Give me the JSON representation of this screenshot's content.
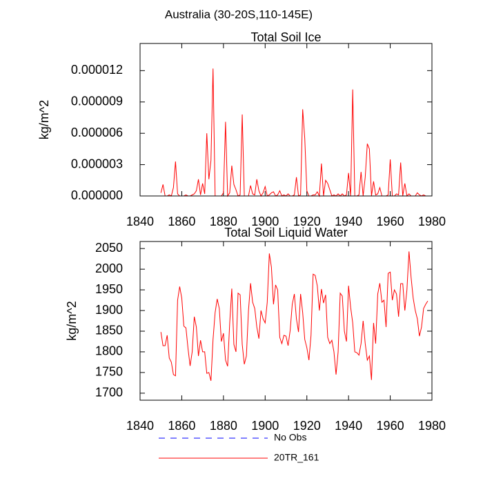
{
  "title": "Australia (30-20S,110-145E)",
  "legend": [
    {
      "name": "No Obs",
      "color": "#0000ff",
      "dash": true
    },
    {
      "name": "20TR_161",
      "color": "#ff0000",
      "dash": false
    }
  ],
  "chart_data": [
    {
      "type": "line",
      "title": "Total Soil Ice",
      "ylabel": "kg/m^2",
      "color": "#ff0000",
      "xlim": [
        1840,
        1980
      ],
      "xticks": [
        1840,
        1860,
        1880,
        1900,
        1920,
        1940,
        1960,
        1980
      ],
      "ylim": [
        0,
        1.46e-05
      ],
      "yticks": [
        {
          "value": 0,
          "label": "0.000000"
        },
        {
          "value": 3e-06,
          "label": "0.000003"
        },
        {
          "value": 6e-06,
          "label": "0.000006"
        },
        {
          "value": 9e-06,
          "label": "0.000009"
        },
        {
          "value": 1.2e-05,
          "label": "0.000012"
        }
      ],
      "x": [
        1850,
        1851,
        1852,
        1853,
        1854,
        1855,
        1856,
        1857,
        1858,
        1859,
        1860,
        1861,
        1862,
        1863,
        1864,
        1865,
        1866,
        1867,
        1868,
        1869,
        1870,
        1871,
        1872,
        1873,
        1874,
        1875,
        1876,
        1877,
        1878,
        1879,
        1880,
        1881,
        1882,
        1883,
        1884,
        1885,
        1886,
        1887,
        1888,
        1889,
        1890,
        1891,
        1892,
        1893,
        1894,
        1895,
        1896,
        1897,
        1898,
        1899,
        1900,
        1901,
        1902,
        1903,
        1904,
        1905,
        1906,
        1907,
        1908,
        1909,
        1910,
        1911,
        1912,
        1913,
        1914,
        1915,
        1916,
        1917,
        1918,
        1919,
        1920,
        1921,
        1922,
        1923,
        1924,
        1925,
        1926,
        1927,
        1928,
        1929,
        1930,
        1931,
        1932,
        1933,
        1934,
        1935,
        1936,
        1937,
        1938,
        1939,
        1940,
        1941,
        1942,
        1943,
        1944,
        1945,
        1946,
        1947,
        1948,
        1949,
        1950,
        1951,
        1952,
        1953,
        1954,
        1955,
        1956,
        1957,
        1958,
        1959,
        1960,
        1961,
        1962,
        1963,
        1964,
        1965,
        1966,
        1967,
        1968,
        1969,
        1970,
        1971,
        1972,
        1973,
        1974,
        1975,
        1976,
        1977,
        1978
      ],
      "values": [
        3e-07,
        1.1e-06,
        0,
        0,
        1e-07,
        0,
        8e-07,
        3.3e-06,
        2e-07,
        0,
        0,
        0,
        1e-07,
        0,
        0,
        1e-07,
        2e-07,
        5e-07,
        1.6e-06,
        1e-07,
        1.2e-06,
        2e-07,
        6e-06,
        1.6e-06,
        3.4e-06,
        1.22e-05,
        0,
        0,
        0,
        0,
        3e-07,
        7.1e-06,
        0,
        3e-07,
        2.9e-06,
        1.1e-06,
        6e-07,
        0,
        1e-07,
        7.8e-06,
        0,
        0,
        0,
        1e-06,
        2e-07,
        1e-07,
        1.6e-06,
        5e-07,
        0,
        3e-07,
        9e-07,
        0,
        1e-07,
        3e-07,
        4e-07,
        0,
        1e-07,
        5e-07,
        0,
        1e-07,
        0,
        2e-07,
        0,
        0,
        1e-07,
        1.8e-06,
        0,
        1e-07,
        8.3e-06,
        5.5e-06,
        5e-07,
        0,
        0,
        1e-07,
        1e-07,
        4e-07,
        0,
        3.1e-06,
        0,
        1.5e-06,
        1.2e-06,
        6e-07,
        0,
        1e-07,
        0,
        2e-07,
        0,
        2e-07,
        0,
        1e-07,
        2.2e-06,
        0,
        1.02e-05,
        0,
        0,
        1e-07,
        2.3e-06,
        0,
        1.8e-06,
        5e-06,
        4.5e-06,
        0,
        1.4e-06,
        1e-07,
        2e-07,
        8e-07,
        0,
        0,
        0,
        1e-07,
        3.5e-06,
        0,
        0,
        2e-07,
        1e-07,
        3.2e-06,
        0,
        1.2e-06,
        0,
        2e-07,
        0,
        0,
        0,
        3e-07,
        1e-07,
        0,
        1e-07,
        0,
        0
      ]
    },
    {
      "type": "line",
      "title": "Total Soil Liquid Water",
      "ylabel": "kg/m^2",
      "color": "#ff0000",
      "xlim": [
        1840,
        1980
      ],
      "xticks": [
        1840,
        1860,
        1880,
        1900,
        1920,
        1940,
        1960,
        1980
      ],
      "ylim": [
        1683,
        2067
      ],
      "yticks": [
        1700,
        1750,
        1800,
        1850,
        1900,
        1950,
        2000,
        2050
      ],
      "x": [
        1850,
        1851,
        1852,
        1853,
        1854,
        1855,
        1856,
        1857,
        1858,
        1859,
        1860,
        1861,
        1862,
        1863,
        1864,
        1865,
        1866,
        1867,
        1868,
        1869,
        1870,
        1871,
        1872,
        1873,
        1874,
        1875,
        1876,
        1877,
        1878,
        1879,
        1880,
        1881,
        1882,
        1883,
        1884,
        1885,
        1886,
        1887,
        1888,
        1889,
        1890,
        1891,
        1892,
        1893,
        1894,
        1895,
        1896,
        1897,
        1898,
        1899,
        1900,
        1901,
        1902,
        1903,
        1904,
        1905,
        1906,
        1907,
        1908,
        1909,
        1910,
        1911,
        1912,
        1913,
        1914,
        1915,
        1916,
        1917,
        1918,
        1919,
        1920,
        1921,
        1922,
        1923,
        1924,
        1925,
        1926,
        1927,
        1928,
        1929,
        1930,
        1931,
        1932,
        1933,
        1934,
        1935,
        1936,
        1937,
        1938,
        1939,
        1940,
        1941,
        1942,
        1943,
        1944,
        1945,
        1946,
        1947,
        1948,
        1949,
        1950,
        1951,
        1952,
        1953,
        1954,
        1955,
        1956,
        1957,
        1958,
        1959,
        1960,
        1961,
        1962,
        1963,
        1964,
        1965,
        1966,
        1967,
        1968,
        1969,
        1970,
        1971,
        1972,
        1973,
        1974,
        1975,
        1976,
        1977,
        1978
      ],
      "values": [
        1848,
        1815,
        1815,
        1840,
        1785,
        1775,
        1745,
        1742,
        1925,
        1958,
        1930,
        1862,
        1858,
        1808,
        1766,
        1800,
        1885,
        1860,
        1790,
        1828,
        1800,
        1800,
        1748,
        1750,
        1730,
        1830,
        1895,
        1928,
        1905,
        1825,
        1845,
        1780,
        1765,
        1870,
        1953,
        1818,
        1800,
        1942,
        1938,
        1818,
        1770,
        1790,
        1900,
        1966,
        1920,
        1905,
        1860,
        1832,
        1900,
        1880,
        1870,
        1920,
        2038,
        2005,
        1915,
        1962,
        1950,
        1835,
        1820,
        1840,
        1838,
        1815,
        1852,
        1915,
        1940,
        1880,
        1848,
        1940,
        1895,
        1830,
        1810,
        1780,
        1840,
        1988,
        1985,
        1960,
        1900,
        1952,
        1918,
        1938,
        1835,
        1820,
        1828,
        1800,
        1745,
        1800,
        1942,
        1935,
        1850,
        1825,
        1960,
        1908,
        1870,
        1800,
        1798,
        1792,
        1820,
        1875,
        1820,
        1780,
        1790,
        1732,
        1870,
        1820,
        1940,
        1966,
        1920,
        1925,
        1860,
        1990,
        1993,
        1925,
        1950,
        1940,
        1885,
        1965,
        1965,
        1900,
        1950,
        2043,
        1980,
        1930,
        1900,
        1880,
        1838,
        1860,
        1905,
        1915,
        1923
      ]
    }
  ]
}
